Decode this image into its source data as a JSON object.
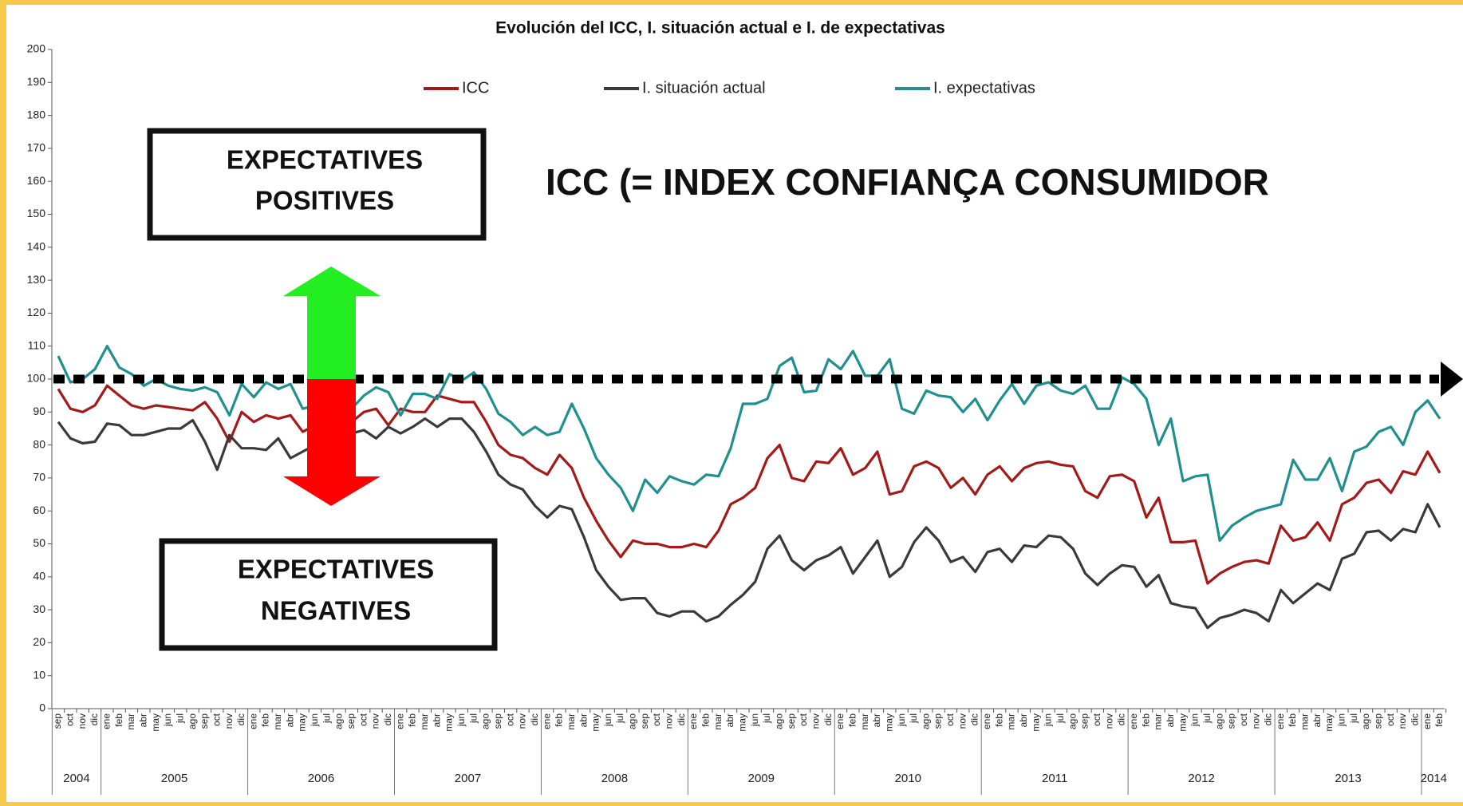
{
  "chart_data": {
    "type": "line",
    "title": "Evolución del ICC, I. situación actual e I. de expectativas",
    "categories": [
      "sep",
      "oct",
      "nov",
      "dic",
      "ene",
      "feb",
      "mar",
      "abr",
      "may",
      "jun",
      "jul",
      "ago",
      "sep",
      "oct",
      "nov",
      "dic",
      "ene",
      "feb",
      "mar",
      "abr",
      "may",
      "jun",
      "jul",
      "ago",
      "sep",
      "oct",
      "nov",
      "dic",
      "ene",
      "feb",
      "mar",
      "abr",
      "may",
      "jun",
      "jul",
      "ago",
      "sep",
      "oct",
      "nov",
      "dic",
      "ene",
      "feb",
      "mar",
      "abr",
      "may",
      "jun",
      "jul",
      "ago",
      "sep",
      "oct",
      "nov",
      "dic",
      "ene",
      "feb",
      "mar",
      "abr",
      "may",
      "jun",
      "jul",
      "ago",
      "sep",
      "oct",
      "nov",
      "dic",
      "ene",
      "feb",
      "mar",
      "abr",
      "may",
      "jun",
      "jul",
      "ago",
      "sep",
      "oct",
      "nov",
      "dic",
      "ene",
      "feb",
      "mar",
      "abr",
      "may",
      "jun",
      "jul",
      "ago",
      "sep",
      "oct",
      "nov",
      "dic",
      "ene",
      "feb",
      "mar",
      "abr",
      "may",
      "jun",
      "jul",
      "ago",
      "sep",
      "oct",
      "nov",
      "dic",
      "ene",
      "feb",
      "mar",
      "abr",
      "may",
      "jun",
      "jul",
      "ago",
      "sep",
      "oct",
      "nov",
      "dic",
      "ene",
      "feb"
    ],
    "years": [
      "2004",
      "2005",
      "2006",
      "2007",
      "2008",
      "2009",
      "2010",
      "2011",
      "2012",
      "2013",
      "2014"
    ],
    "series": [
      {
        "name": "ICC",
        "color": "#a31a1a",
        "values": [
          97,
          91,
          90,
          92,
          98,
          95,
          92,
          91,
          92,
          91.5,
          91,
          90.5,
          93,
          88,
          81,
          90,
          87,
          89,
          88,
          89,
          84,
          86,
          85,
          83,
          87,
          90,
          91,
          86,
          91,
          90,
          90,
          95,
          94,
          93,
          93,
          87,
          80,
          77,
          76,
          73,
          71,
          77,
          73,
          64,
          57,
          51,
          46,
          51,
          50,
          50,
          49,
          49,
          50,
          49,
          54,
          62,
          64,
          67,
          76,
          80,
          70,
          69,
          75,
          74.5,
          79,
          71,
          73,
          78,
          65,
          66,
          73.5,
          75,
          73,
          67,
          70,
          65,
          71,
          73.5,
          69,
          73,
          74.5,
          75,
          74,
          73.5,
          66,
          64,
          70.5,
          71,
          69,
          58,
          64,
          50.5,
          50.5,
          51,
          38,
          41,
          43,
          44.5,
          45,
          44,
          55.5,
          51,
          52,
          56.5,
          51,
          62,
          64,
          68.5,
          69.5,
          65.5,
          72,
          71,
          78,
          71.5
        ]
      },
      {
        "name": "I. situación actual",
        "color": "#3a3a3a",
        "values": [
          87,
          82,
          80.5,
          81,
          86.5,
          86,
          83,
          83,
          84,
          85,
          85,
          87.5,
          81,
          72.5,
          83,
          79,
          79,
          78.5,
          82,
          76,
          78,
          80,
          81,
          83,
          83.5,
          84.5,
          82,
          85.5,
          83.5,
          85.5,
          88,
          85.5,
          88,
          88,
          84,
          78,
          71,
          68,
          66.5,
          61.5,
          58,
          61.5,
          60.5,
          52,
          42,
          37,
          33,
          33.5,
          33.5,
          29,
          28,
          29.5,
          29.5,
          26.5,
          28,
          31.5,
          34.5,
          38.5,
          48.5,
          52.5,
          45,
          42,
          45,
          46.5,
          49,
          41,
          46,
          51,
          40,
          43,
          50.5,
          55,
          51,
          44.5,
          46,
          41.5,
          47.5,
          48.5,
          44.5,
          49.5,
          49,
          52.5,
          52,
          48.5,
          41,
          37.5,
          41,
          43.5,
          43,
          37,
          40.5,
          32,
          31,
          30.5,
          24.5,
          27.5,
          28.5,
          30,
          29,
          26.5,
          36,
          32,
          35,
          38,
          36,
          45.5,
          47,
          53.5,
          54,
          51,
          54.5,
          53.5,
          62,
          55
        ]
      },
      {
        "name": "I. expectativas",
        "color": "#1f8f8f",
        "values": [
          107,
          99,
          100,
          103,
          110,
          103.5,
          101.5,
          98,
          100,
          98,
          97,
          96.5,
          97.5,
          96,
          89,
          98.5,
          94.5,
          99,
          97,
          98.5,
          91,
          92,
          90.5,
          89,
          91,
          95,
          97.5,
          96,
          89,
          95.5,
          95.5,
          94,
          101.5,
          99.5,
          102,
          97,
          89.5,
          87,
          83,
          85.5,
          83,
          84,
          92.5,
          85,
          76,
          71,
          67,
          60,
          69.5,
          65.5,
          70.5,
          69,
          68,
          71,
          70.5,
          79,
          92.5,
          92.5,
          94,
          104,
          106.5,
          96,
          96.5,
          106,
          103,
          108.5,
          101,
          101,
          106,
          91,
          89.5,
          96.5,
          95,
          94.5,
          90,
          94,
          87.5,
          93.5,
          98.5,
          92.5,
          98,
          99,
          96.5,
          95.5,
          98,
          91,
          91,
          100.5,
          98.5,
          94,
          80,
          88,
          69,
          70.5,
          71,
          51,
          55.5,
          58,
          60,
          61,
          62,
          75.5,
          69.5,
          69.5,
          76,
          66,
          78,
          79.5,
          84,
          85.5,
          80,
          90,
          93.5,
          88
        ]
      }
    ],
    "ylim": [
      0,
      200
    ],
    "yticks": [
      0,
      10,
      20,
      30,
      40,
      50,
      60,
      70,
      80,
      90,
      100,
      110,
      120,
      130,
      140,
      150,
      160,
      170,
      180,
      190,
      200
    ],
    "ref_line": {
      "value": 100
    },
    "headline": "ICC (= INDEX CONFIANÇA CONSUMIDOR",
    "annotations": {
      "positive": [
        "EXPECTATIVES",
        "POSITIVES"
      ],
      "negative": [
        "EXPECTATIVES",
        "NEGATIVES"
      ]
    }
  }
}
